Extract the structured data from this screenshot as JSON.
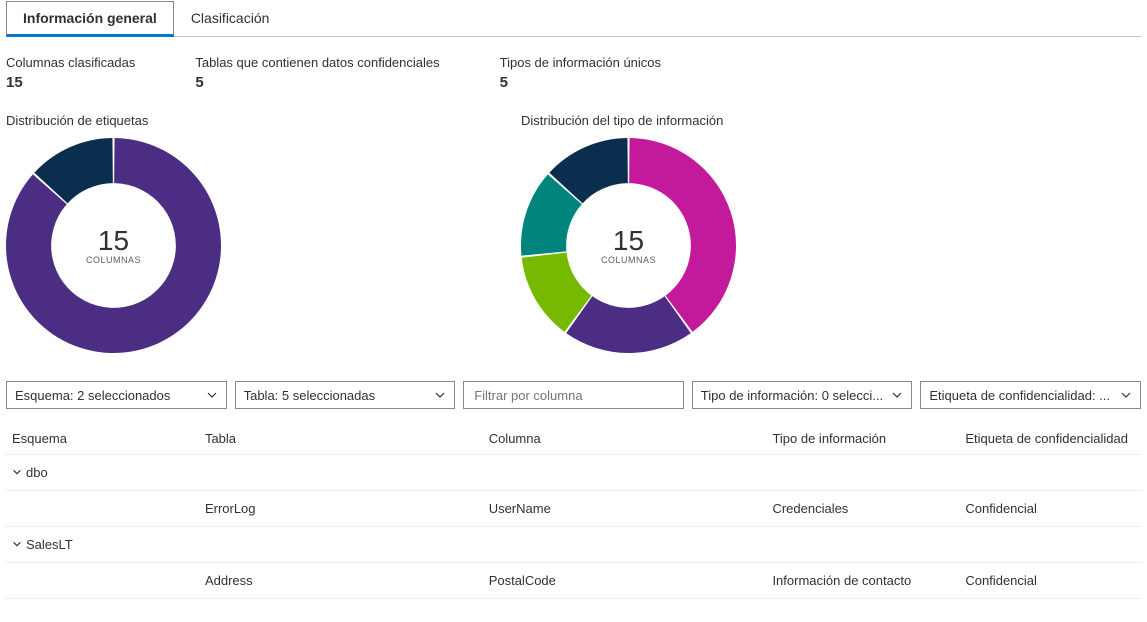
{
  "tabs": {
    "active": "Información general",
    "inactive": "Clasificación"
  },
  "metrics": [
    {
      "label": "Columnas clasificadas",
      "value": "15"
    },
    {
      "label": "Tablas que contienen datos confidenciales",
      "value": "5"
    },
    {
      "label": "Tipos de información únicos",
      "value": "5"
    }
  ],
  "chart1": {
    "title": "Distribución de etiquetas",
    "type": "donut",
    "center_value": "15",
    "center_label": "COLUMNAS",
    "size": 215,
    "inner_radius_ratio": 0.58,
    "background": "#ffffff",
    "slices": [
      {
        "value": 13,
        "color": "#4b2e83"
      },
      {
        "value": 2,
        "color": "#0b2e4f"
      }
    ]
  },
  "chart2": {
    "title": "Distribución del tipo de información",
    "type": "donut",
    "center_value": "15",
    "center_label": "COLUMNAS",
    "size": 215,
    "inner_radius_ratio": 0.58,
    "background": "#ffffff",
    "slices": [
      {
        "value": 6,
        "color": "#c3199b"
      },
      {
        "value": 3,
        "color": "#4b2e83"
      },
      {
        "value": 2,
        "color": "#76b900"
      },
      {
        "value": 2,
        "color": "#00857d"
      },
      {
        "value": 2,
        "color": "#0b2e4f"
      }
    ]
  },
  "filters": {
    "schema": "Esquema: 2 seleccionados",
    "table": "Tabla: 5 seleccionadas",
    "column_placeholder": "Filtrar por columna",
    "infotype": "Tipo de información: 0 selecci...",
    "label": "Etiqueta de confidencialidad: ..."
  },
  "grid": {
    "headers": {
      "schema": "Esquema",
      "table": "Tabla",
      "column": "Columna",
      "infotype": "Tipo de información",
      "label": "Etiqueta de confidencialidad"
    },
    "groups": [
      {
        "name": "dbo",
        "rows": [
          {
            "table": "ErrorLog",
            "column": "UserName",
            "infotype": "Credenciales",
            "label": "Confidencial"
          }
        ]
      },
      {
        "name": "SalesLT",
        "rows": [
          {
            "table": "Address",
            "column": "PostalCode",
            "infotype": "Información de contacto",
            "label": "Confidencial"
          }
        ]
      }
    ]
  }
}
